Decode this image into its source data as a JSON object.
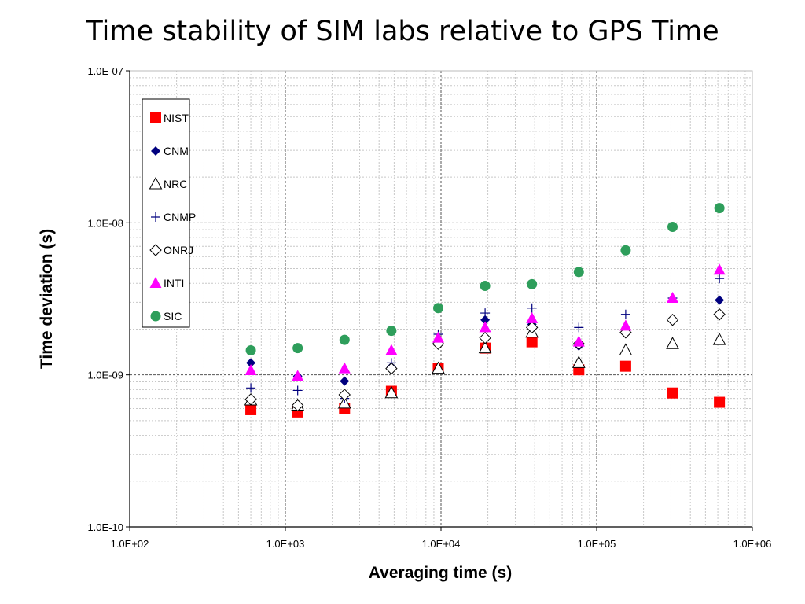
{
  "chart_data": {
    "type": "scatter",
    "title": "Time stability of SIM labs relative to GPS Time",
    "xlabel": "Averaging time (s)",
    "ylabel": "Time deviation (s)",
    "x_scale": "log",
    "y_scale": "log",
    "xlim": [
      100,
      1000000
    ],
    "ylim": [
      1e-10,
      1e-07
    ],
    "x_ticks": [
      "1.0E+02",
      "1.0E+03",
      "1.0E+04",
      "1.0E+05",
      "1.0E+06"
    ],
    "y_ticks": [
      "1.0E-10",
      "1.0E-09",
      "1.0E-08",
      "1.0E-07"
    ],
    "grid": "on (major dashed, minor dotted)",
    "legend_position": "top-left",
    "x": [
      600,
      1200,
      2400,
      4800,
      9600,
      19200,
      38400,
      76800,
      153600,
      307200,
      614400
    ],
    "series": [
      {
        "name": "NIST",
        "marker": "square",
        "color": "#ff0000",
        "values": [
          5.9e-10,
          5.7e-10,
          6e-10,
          7.8e-10,
          1.1e-09,
          1.5e-09,
          1.65e-09,
          1.08e-09,
          1.14e-09,
          7.6e-10,
          6.6e-10
        ]
      },
      {
        "name": "CNM",
        "marker": "diamond",
        "color": "#00007f",
        "values": [
          1.2e-09,
          9.8e-10,
          9.1e-10,
          1.13e-09,
          1.65e-09,
          2.3e-09,
          2.15e-09,
          1.55e-09,
          1.9e-09,
          2.3e-09,
          3.1e-09
        ]
      },
      {
        "name": "NRC",
        "marker": "triangle-open",
        "color": "#000000",
        "values": [
          6.8e-10,
          6.3e-10,
          6.5e-10,
          7.6e-10,
          1.1e-09,
          1.5e-09,
          1.9e-09,
          1.2e-09,
          1.45e-09,
          1.6e-09,
          1.7e-09
        ]
      },
      {
        "name": "CNMP",
        "marker": "plus",
        "color": "#00007f",
        "values": [
          8.2e-10,
          7.9e-10,
          7e-10,
          1.2e-09,
          1.85e-09,
          2.55e-09,
          2.75e-09,
          2.05e-09,
          2.5e-09,
          3.2e-09,
          4.3e-09
        ]
      },
      {
        "name": "ONRJ",
        "marker": "diamond-open",
        "color": "#000000",
        "values": [
          6.9e-10,
          6.3e-10,
          7.4e-10,
          1.1e-09,
          1.6e-09,
          1.75e-09,
          2.05e-09,
          1.6e-09,
          1.9e-09,
          2.3e-09,
          2.5e-09
        ]
      },
      {
        "name": "INTI",
        "marker": "triangle",
        "color": "#ff00ff",
        "values": [
          1.07e-09,
          9.8e-10,
          1.1e-09,
          1.45e-09,
          1.75e-09,
          2.05e-09,
          2.35e-09,
          1.65e-09,
          2.1e-09,
          3.2e-09,
          4.9e-09
        ]
      },
      {
        "name": "SIC",
        "marker": "circle",
        "color": "#2e9e5b",
        "values": [
          1.45e-09,
          1.5e-09,
          1.7e-09,
          1.95e-09,
          2.75e-09,
          3.85e-09,
          3.95e-09,
          4.75e-09,
          6.6e-09,
          9.4e-09,
          1.25e-08
        ]
      }
    ]
  }
}
